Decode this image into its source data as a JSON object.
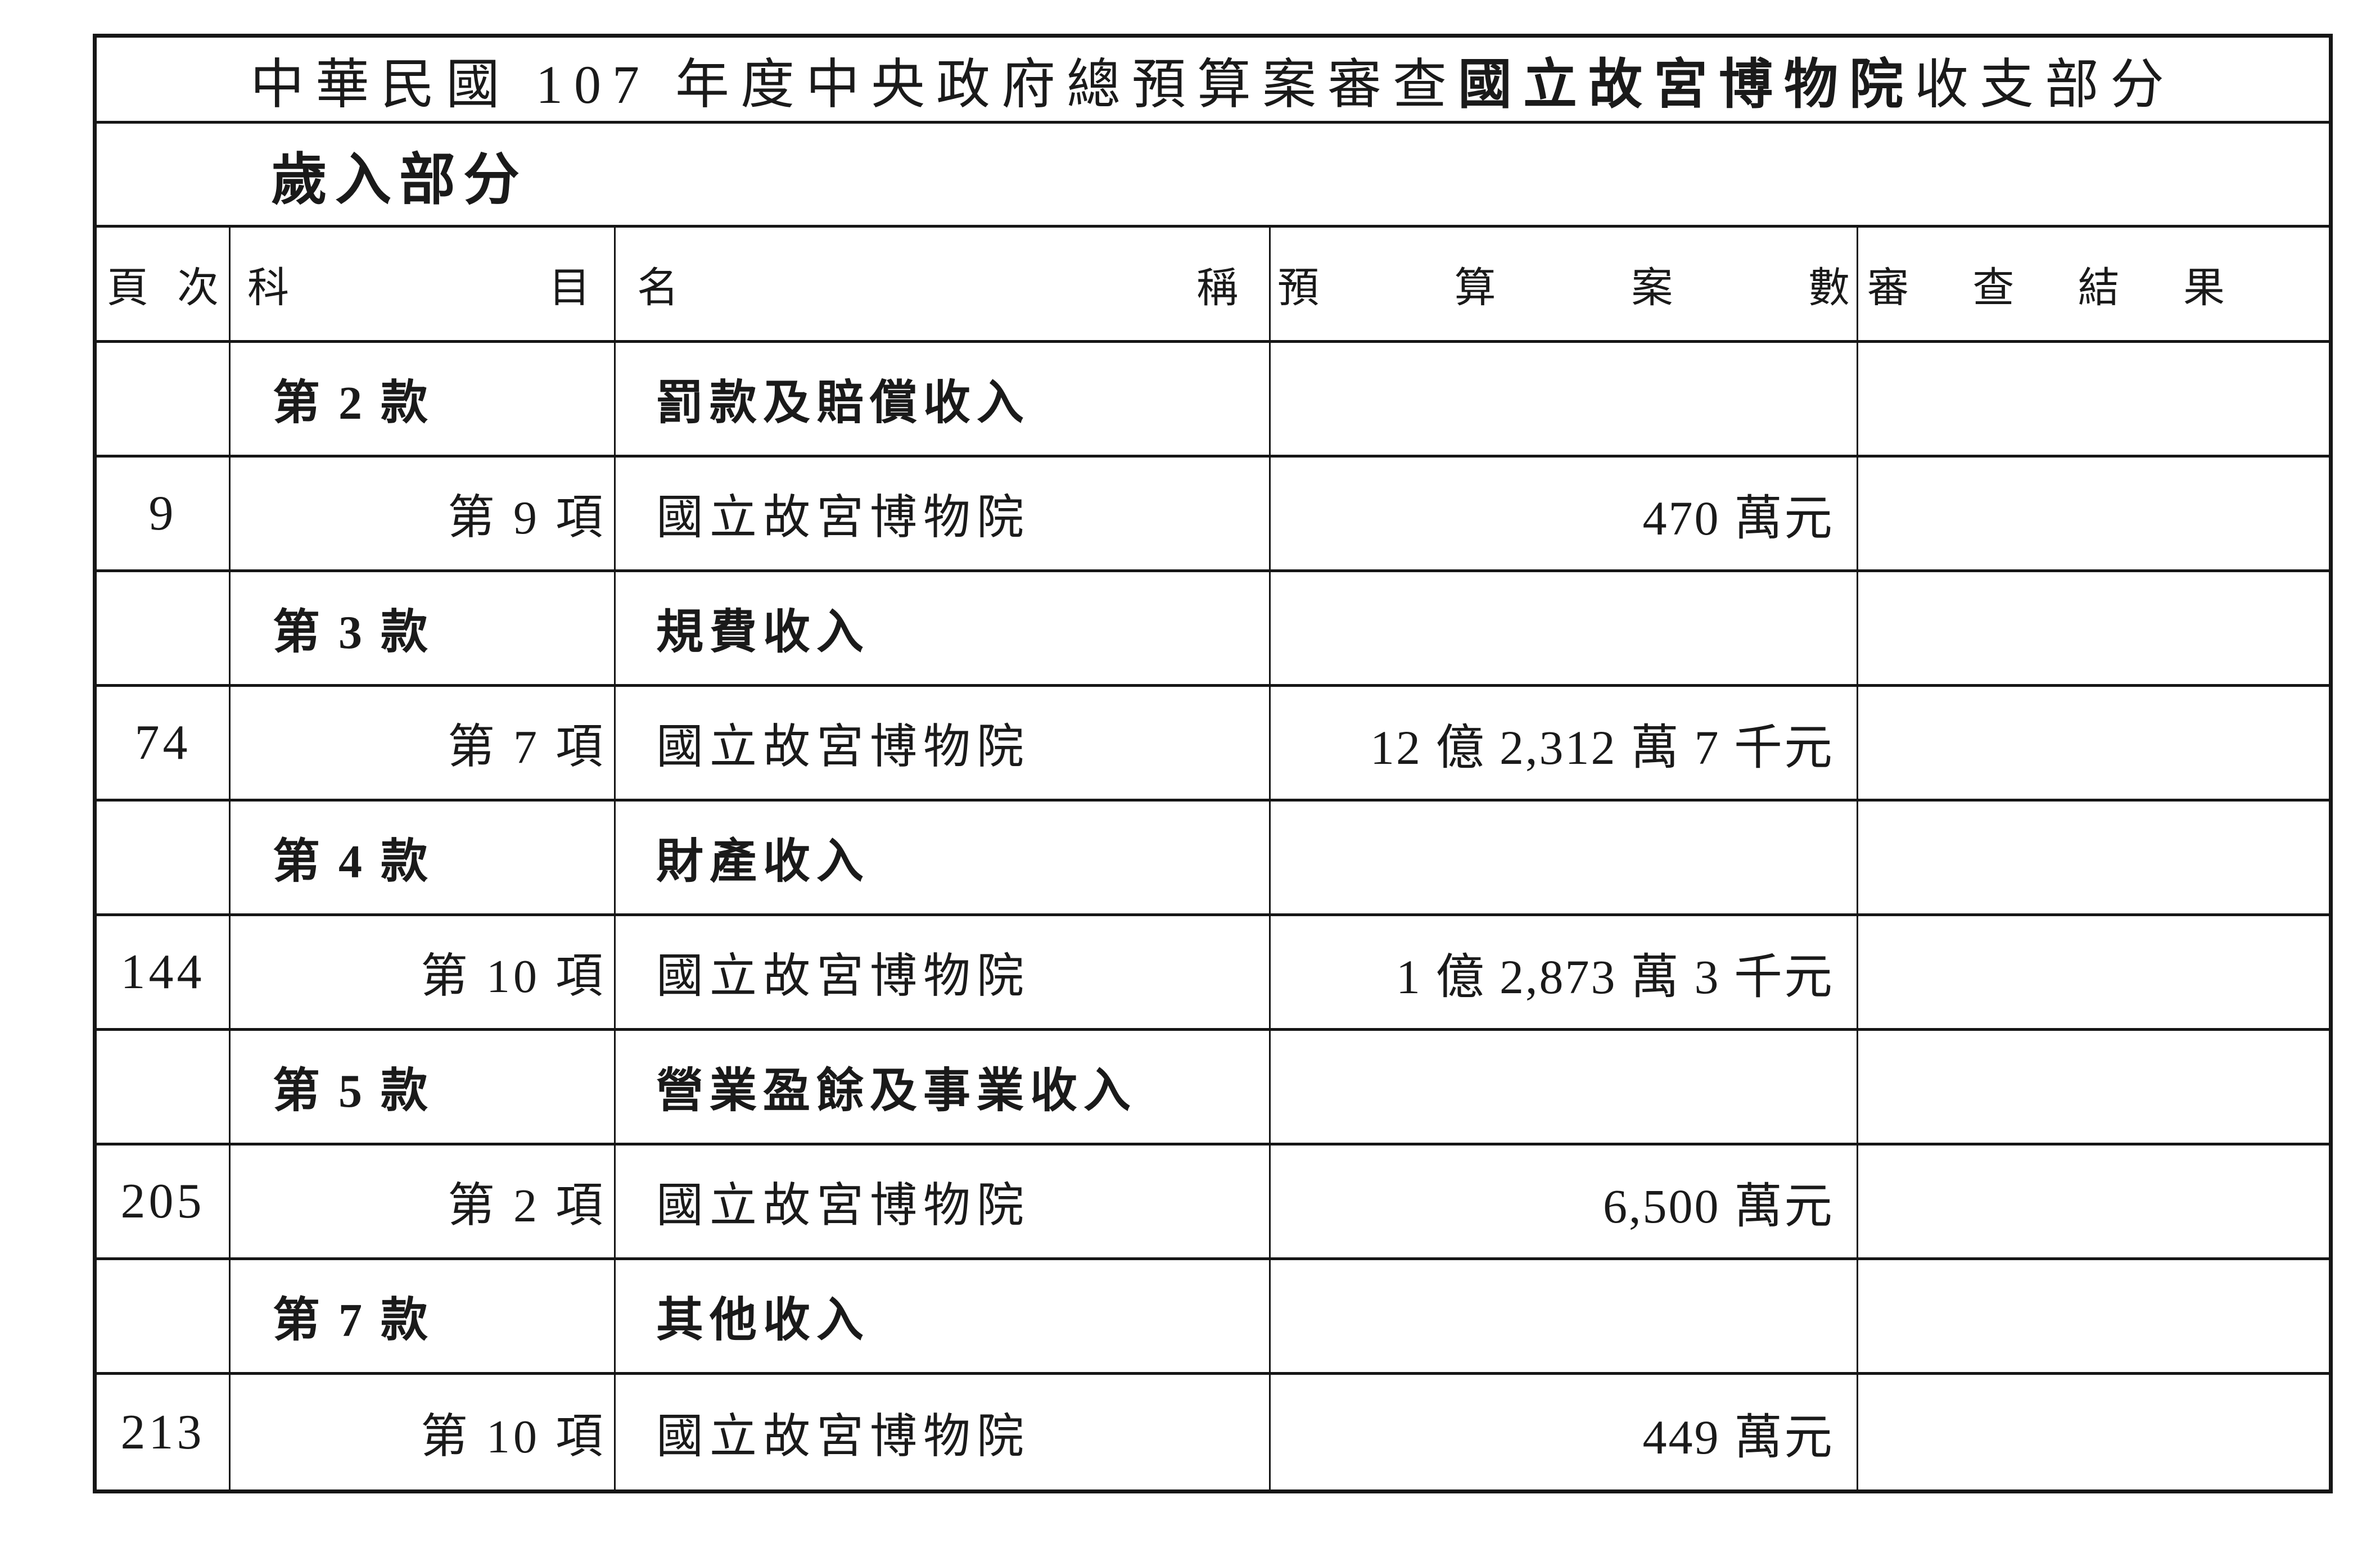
{
  "page": {
    "title_prefix": "中華民國 107 年度中央政府總預算案審查",
    "title_emphasis": "國立故宮博物院",
    "title_suffix": "收支部分",
    "subtitle": "歲入部分"
  },
  "table": {
    "headers": {
      "page_no": "頁次",
      "account": "科目",
      "name": "名稱",
      "budget": "預算案數",
      "review": "審查結果"
    },
    "rows": [
      {
        "type": "category",
        "page": "",
        "account": "第 2 款",
        "name": "罰款及賠償收入",
        "budget": "",
        "review": ""
      },
      {
        "type": "item",
        "page": "9",
        "account": "第 9 項",
        "name": "國立故宮博物院",
        "budget": "470 萬元",
        "review": ""
      },
      {
        "type": "category",
        "page": "",
        "account": "第 3 款",
        "name": "規費收入",
        "budget": "",
        "review": ""
      },
      {
        "type": "item",
        "page": "74",
        "account": "第 7 項",
        "name": "國立故宮博物院",
        "budget": "12 億 2,312 萬 7 千元",
        "review": ""
      },
      {
        "type": "category",
        "page": "",
        "account": "第 4 款",
        "name": "財產收入",
        "budget": "",
        "review": ""
      },
      {
        "type": "item",
        "page": "144",
        "account": "第 10 項",
        "name": "國立故宮博物院",
        "budget": "1 億 2,873 萬 3 千元",
        "review": ""
      },
      {
        "type": "category",
        "page": "",
        "account": "第 5 款",
        "name": "營業盈餘及事業收入",
        "budget": "",
        "review": ""
      },
      {
        "type": "item",
        "page": "205",
        "account": "第 2 項",
        "name": "國立故宮博物院",
        "budget": "6,500 萬元",
        "review": ""
      },
      {
        "type": "category",
        "page": "",
        "account": "第 7 款",
        "name": "其他收入",
        "budget": "",
        "review": ""
      },
      {
        "type": "item",
        "page": "213",
        "account": "第 10 項",
        "name": "國立故宮博物院",
        "budget": "449 萬元",
        "review": ""
      }
    ]
  }
}
